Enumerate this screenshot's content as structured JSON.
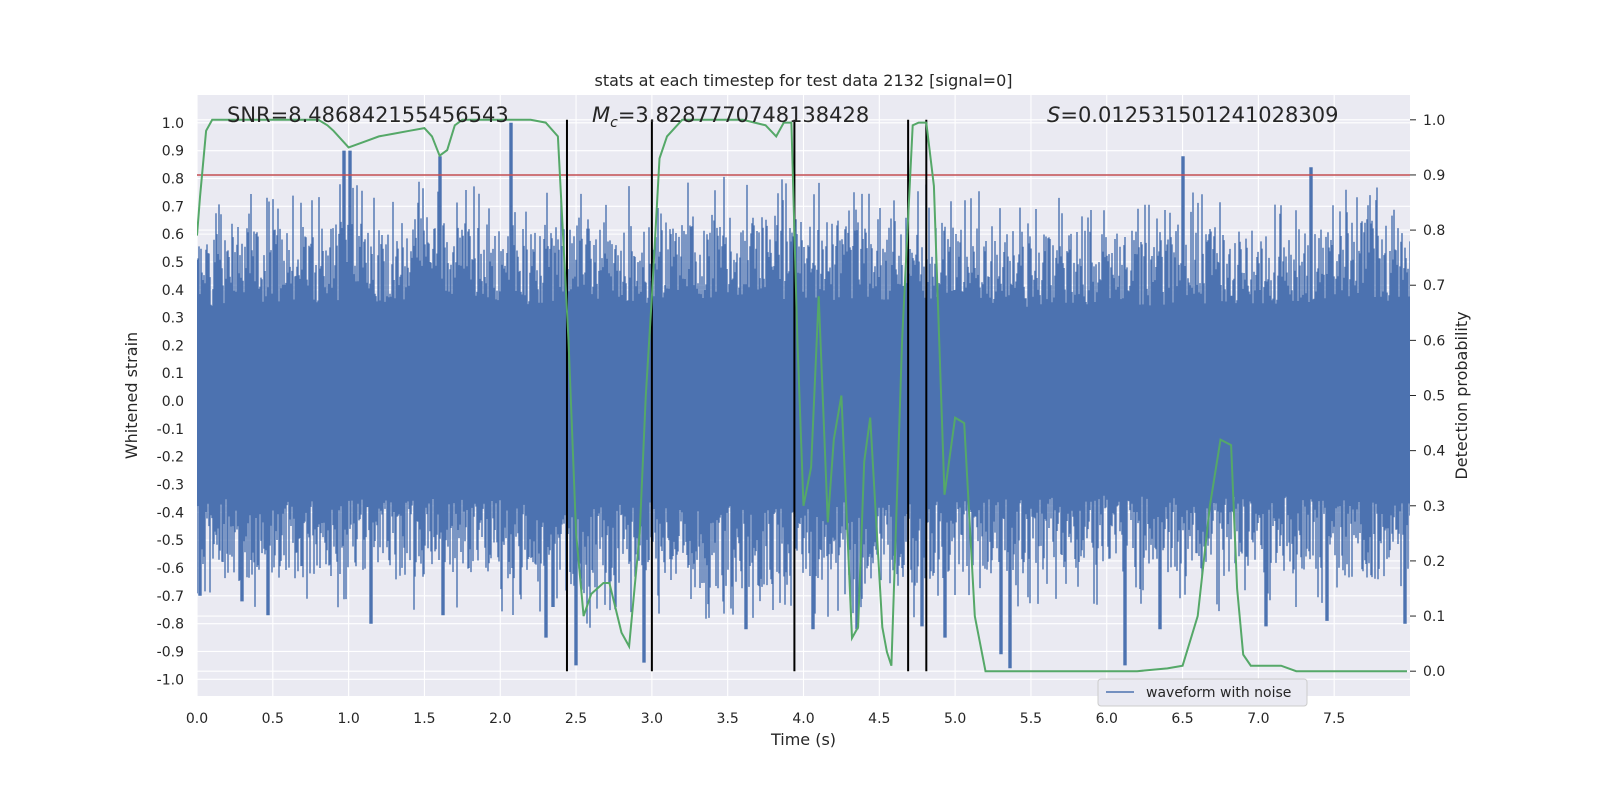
{
  "chart_data": {
    "type": "line",
    "title": "stats at each timestep for test data 2132 [signal=0]",
    "xlabel": "Time (s)",
    "ylabel": "Whitened strain",
    "y2label": "Detection probability",
    "xlim": [
      0.0,
      8.0
    ],
    "ylim": [
      -1.06,
      1.1
    ],
    "y2lim": [
      -0.045,
      1.045
    ],
    "x_ticks": [
      "0.0",
      "0.5",
      "1.0",
      "1.5",
      "2.0",
      "2.5",
      "3.0",
      "3.5",
      "4.0",
      "4.5",
      "5.0",
      "5.5",
      "6.0",
      "6.5",
      "7.0",
      "7.5"
    ],
    "y_ticks": [
      "1.0",
      "0.9",
      "0.8",
      "0.7",
      "0.6",
      "0.5",
      "0.4",
      "0.3",
      "0.2",
      "0.1",
      "0.0",
      "-0.1",
      "-0.2",
      "-0.3",
      "-0.4",
      "-0.5",
      "-0.6",
      "-0.7",
      "-0.8",
      "-0.9",
      "-1.0"
    ],
    "y2_ticks": [
      "1.0",
      "0.9",
      "0.8",
      "0.7",
      "0.6",
      "0.5",
      "0.4",
      "0.3",
      "0.2",
      "0.1",
      "0.0"
    ],
    "grid": true,
    "legend_position": "lower-right",
    "annotations": {
      "snr": "SNR=8.486842155456543",
      "mc_prefix": "M",
      "mc_sub": "c",
      "mc_value": "=3.8287770748138428",
      "s_prefix": "S",
      "s_value": "=0.012531501241028309"
    },
    "threshold": {
      "y2": 0.9,
      "color": "#c44e52"
    },
    "vertical_lines_x": [
      2.44,
      3.0,
      3.94,
      4.69,
      4.81
    ],
    "series": [
      {
        "name": "waveform with noise",
        "color": "#4c72b0",
        "axis": "left",
        "envelope": {
          "x": [
            0.0,
            0.25,
            0.5,
            0.75,
            1.0,
            1.25,
            1.5,
            1.75,
            2.0,
            2.25,
            2.5,
            2.75,
            3.0,
            3.25,
            3.5,
            3.75,
            4.0,
            4.25,
            4.5,
            4.75,
            5.0,
            5.25,
            5.5,
            5.75,
            6.0,
            6.25,
            6.5,
            6.75,
            7.0,
            7.25,
            7.5,
            7.75,
            8.0
          ],
          "upper": [
            0.6,
            0.65,
            0.62,
            0.64,
            0.66,
            0.64,
            0.67,
            0.65,
            0.64,
            0.63,
            0.67,
            0.66,
            0.63,
            0.67,
            0.68,
            0.67,
            0.66,
            0.65,
            0.66,
            0.67,
            0.63,
            0.64,
            0.6,
            0.63,
            0.62,
            0.61,
            0.64,
            0.63,
            0.62,
            0.62,
            0.63,
            0.67,
            0.6
          ],
          "lower": [
            -0.6,
            -0.65,
            -0.66,
            -0.64,
            -0.62,
            -0.65,
            -0.64,
            -0.62,
            -0.64,
            -0.65,
            -0.7,
            -0.66,
            -0.64,
            -0.67,
            -0.68,
            -0.67,
            -0.66,
            -0.65,
            -0.66,
            -0.67,
            -0.63,
            -0.62,
            -0.62,
            -0.6,
            -0.62,
            -0.62,
            -0.63,
            -0.63,
            -0.62,
            -0.62,
            -0.63,
            -0.66,
            -0.6
          ]
        },
        "spikes": [
          [
            0.02,
            -0.7
          ],
          [
            0.3,
            -0.72
          ],
          [
            0.47,
            -0.77
          ],
          [
            0.97,
            0.9
          ],
          [
            1.01,
            0.9
          ],
          [
            1.15,
            -0.8
          ],
          [
            1.6,
            0.88
          ],
          [
            1.62,
            -0.77
          ],
          [
            2.07,
            1.0
          ],
          [
            2.3,
            -0.85
          ],
          [
            2.35,
            -0.74
          ],
          [
            2.5,
            -0.95
          ],
          [
            2.58,
            0.62
          ],
          [
            2.95,
            -0.94
          ],
          [
            3.62,
            -0.82
          ],
          [
            4.06,
            -0.82
          ],
          [
            4.35,
            -0.82
          ],
          [
            4.78,
            -0.81
          ],
          [
            4.93,
            -0.85
          ],
          [
            5.3,
            -0.91
          ],
          [
            5.36,
            -0.96
          ],
          [
            6.12,
            -0.95
          ],
          [
            6.5,
            0.88
          ],
          [
            6.35,
            -0.82
          ],
          [
            7.05,
            -0.81
          ],
          [
            7.35,
            0.84
          ],
          [
            7.45,
            -0.79
          ],
          [
            7.97,
            -0.8
          ]
        ]
      },
      {
        "name": "Detection probability",
        "color": "#55a868",
        "axis": "right",
        "x": [
          0.0,
          0.02,
          0.06,
          0.1,
          0.2,
          0.5,
          0.8,
          0.86,
          0.9,
          1.0,
          1.1,
          1.2,
          1.3,
          1.4,
          1.5,
          1.55,
          1.6,
          1.65,
          1.7,
          1.75,
          1.82,
          1.9,
          2.0,
          2.2,
          2.3,
          2.38,
          2.45,
          2.5,
          2.55,
          2.6,
          2.68,
          2.72,
          2.8,
          2.85,
          2.92,
          2.96,
          3.0,
          3.05,
          3.1,
          3.2,
          3.3,
          3.4,
          3.6,
          3.75,
          3.82,
          3.87,
          3.92,
          3.96,
          4.0,
          4.05,
          4.1,
          4.16,
          4.2,
          4.25,
          4.32,
          4.36,
          4.4,
          4.44,
          4.52,
          4.55,
          4.58,
          4.65,
          4.72,
          4.76,
          4.81,
          4.86,
          4.93,
          5.0,
          5.06,
          5.13,
          5.2,
          5.4,
          5.6,
          5.8,
          6.0,
          6.2,
          6.4,
          6.5,
          6.6,
          6.68,
          6.75,
          6.82,
          6.86,
          6.9,
          6.95,
          7.05,
          7.15,
          7.25,
          7.4,
          7.6,
          7.8,
          7.98
        ],
        "y": [
          0.79,
          0.86,
          0.98,
          1.0,
          1.0,
          1.0,
          1.0,
          0.99,
          0.98,
          0.95,
          0.96,
          0.97,
          0.975,
          0.98,
          0.985,
          0.97,
          0.935,
          0.945,
          0.99,
          1.0,
          1.0,
          1.0,
          1.0,
          1.0,
          0.995,
          0.97,
          0.6,
          0.25,
          0.1,
          0.14,
          0.16,
          0.16,
          0.07,
          0.045,
          0.25,
          0.5,
          0.68,
          0.93,
          0.97,
          1.0,
          1.0,
          1.0,
          1.0,
          0.99,
          0.97,
          0.995,
          0.995,
          0.6,
          0.3,
          0.37,
          0.68,
          0.27,
          0.42,
          0.5,
          0.06,
          0.08,
          0.38,
          0.46,
          0.08,
          0.035,
          0.01,
          0.6,
          0.99,
          0.995,
          0.995,
          0.88,
          0.32,
          0.46,
          0.45,
          0.1,
          0.0,
          0.0,
          0.0,
          0.0,
          0.0,
          0.0,
          0.005,
          0.01,
          0.1,
          0.3,
          0.42,
          0.41,
          0.15,
          0.03,
          0.01,
          0.01,
          0.01,
          0.0,
          0.0,
          0.0,
          0.0,
          0.0
        ]
      }
    ]
  }
}
